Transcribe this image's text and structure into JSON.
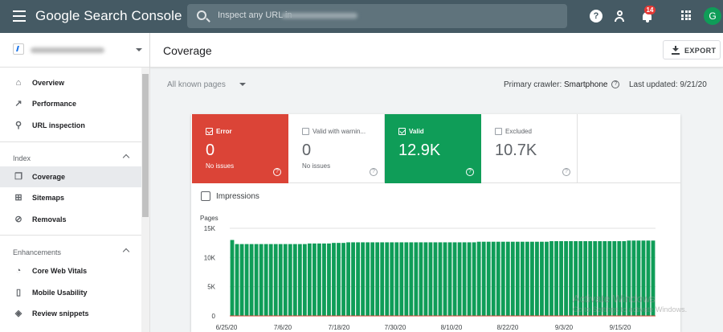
{
  "app": {
    "title": "Google Search Console",
    "search_placeholder": "Inspect any URL in",
    "notifications_count": "14",
    "avatar_letter": "G"
  },
  "sidebar": {
    "items": [
      {
        "label": "Overview",
        "icon": "home-icon"
      },
      {
        "label": "Performance",
        "icon": "trending-up-icon"
      },
      {
        "label": "URL inspection",
        "icon": "search-icon"
      }
    ],
    "index_section": {
      "label": "Index"
    },
    "index_items": [
      {
        "label": "Coverage",
        "icon": "coverage-icon",
        "active": true
      },
      {
        "label": "Sitemaps",
        "icon": "sitemap-icon"
      },
      {
        "label": "Removals",
        "icon": "eye-off-icon"
      }
    ],
    "enhancements_section": {
      "label": "Enhancements"
    },
    "enhancements_items": [
      {
        "label": "Core Web Vitals",
        "icon": "gauge-icon"
      },
      {
        "label": "Mobile Usability",
        "icon": "phone-icon"
      },
      {
        "label": "Review snippets",
        "icon": "layers-icon"
      }
    ]
  },
  "main": {
    "title": "Coverage",
    "export_label": "EXPORT",
    "filter": {
      "selected": "All known pages"
    },
    "crawler": {
      "label": "Primary crawler:",
      "value": "Smartphone"
    },
    "updated": {
      "label": "Last updated:",
      "value": "9/21/20"
    }
  },
  "tiles": [
    {
      "label": "Error",
      "value": "0",
      "sub": "No issues",
      "checked": true,
      "color": "#db4437"
    },
    {
      "label": "Valid with warnin...",
      "value": "0",
      "sub": "No issues",
      "checked": false
    },
    {
      "label": "Valid",
      "value": "12.9K",
      "sub": "",
      "checked": true,
      "color": "#0f9d58"
    },
    {
      "label": "Excluded",
      "value": "10.7K",
      "sub": "",
      "checked": false
    }
  ],
  "impressions_label": "Impressions",
  "chart_data": {
    "type": "bar",
    "ylabel": "Pages",
    "ylim": [
      0,
      15000
    ],
    "yticks": [
      "15K",
      "10K",
      "5K",
      "0"
    ],
    "xticks": [
      "6/25/20",
      "7/6/20",
      "7/18/20",
      "7/30/20",
      "8/10/20",
      "8/22/20",
      "9/3/20",
      "9/15/20"
    ],
    "color": "#0f9d58",
    "series": [
      {
        "values": [
          13000,
          12300,
          12300,
          12300,
          12300,
          12300,
          12300,
          12300,
          12300,
          12300,
          12300,
          12300,
          12300,
          12300,
          12300,
          12300,
          12400,
          12400,
          12400,
          12400,
          12400,
          12500,
          12500,
          12500,
          12600,
          12600,
          12600,
          12600,
          12600,
          12600,
          12600,
          12600,
          12600,
          12600,
          12600,
          12600,
          12600,
          12600,
          12600,
          12600,
          12600,
          12600,
          12600,
          12600,
          12600,
          12600,
          12600,
          12600,
          12600,
          12600,
          12600,
          12700,
          12700,
          12700,
          12700,
          12700,
          12700,
          12700,
          12700,
          12700,
          12700,
          12700,
          12700,
          12700,
          12700,
          12700,
          12800,
          12800,
          12800,
          12800,
          12800,
          12800,
          12800,
          12800,
          12800,
          12800,
          12800,
          12800,
          12800,
          12800,
          12800,
          12800,
          12900,
          12900,
          12900,
          12900,
          12900,
          12900
        ]
      }
    ]
  },
  "watermark": {
    "line1": "Activate Windows",
    "line2": "Go to Settings to activate Windows."
  }
}
